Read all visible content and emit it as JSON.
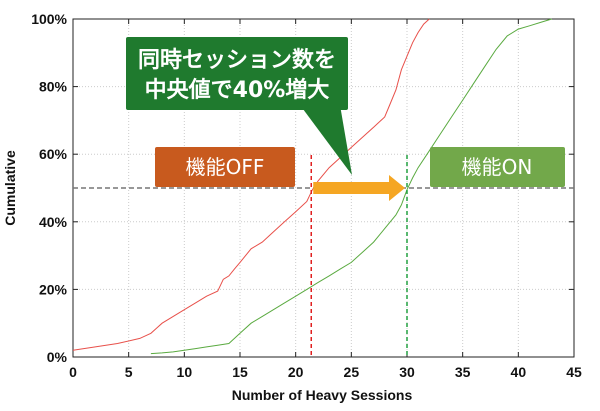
{
  "chart_data": {
    "type": "line",
    "xlabel": "Number of Heavy Sessions",
    "ylabel": "Cumulative",
    "xlim": [
      0,
      45
    ],
    "ylim": [
      0,
      100
    ],
    "xticks": [
      0,
      5,
      10,
      15,
      20,
      25,
      30,
      35,
      40,
      45
    ],
    "yticks": [
      0,
      20,
      40,
      60,
      80,
      100
    ],
    "ytick_labels": [
      "0%",
      "20%",
      "40%",
      "60%",
      "80%",
      "100%"
    ],
    "grid": true,
    "series": [
      {
        "name": "機能OFF",
        "color": "#e8504a",
        "points": [
          [
            0,
            2
          ],
          [
            2,
            3
          ],
          [
            4,
            4
          ],
          [
            6,
            5.5
          ],
          [
            7,
            7
          ],
          [
            7.5,
            8.5
          ],
          [
            8,
            10
          ],
          [
            9,
            12
          ],
          [
            10,
            14
          ],
          [
            11,
            16
          ],
          [
            12,
            18
          ],
          [
            13,
            19.5
          ],
          [
            13.5,
            23
          ],
          [
            14,
            24
          ],
          [
            14.5,
            26
          ],
          [
            15,
            28
          ],
          [
            16,
            32
          ],
          [
            17,
            34
          ],
          [
            18,
            37
          ],
          [
            19,
            40
          ],
          [
            20,
            43
          ],
          [
            21,
            46
          ],
          [
            21.5,
            49.5
          ],
          [
            22,
            52
          ],
          [
            23,
            56
          ],
          [
            24,
            59
          ],
          [
            25,
            62
          ],
          [
            26,
            65
          ],
          [
            27,
            68
          ],
          [
            28,
            71
          ],
          [
            28.5,
            75
          ],
          [
            29,
            79
          ],
          [
            29.5,
            85
          ],
          [
            30,
            89
          ],
          [
            30.5,
            93
          ],
          [
            31,
            96
          ],
          [
            31.5,
            98.5
          ],
          [
            32,
            100
          ]
        ]
      },
      {
        "name": "機能ON",
        "color": "#5aaa40",
        "points": [
          [
            7,
            1
          ],
          [
            8,
            1.2
          ],
          [
            9,
            1.5
          ],
          [
            10,
            2
          ],
          [
            11,
            2.5
          ],
          [
            12,
            3
          ],
          [
            13,
            3.5
          ],
          [
            14,
            4
          ],
          [
            15,
            7
          ],
          [
            16,
            10
          ],
          [
            17,
            12
          ],
          [
            18,
            14
          ],
          [
            19,
            16
          ],
          [
            20,
            18
          ],
          [
            21,
            20
          ],
          [
            22,
            22
          ],
          [
            23,
            24
          ],
          [
            24,
            26
          ],
          [
            25,
            28
          ],
          [
            26,
            31
          ],
          [
            27,
            34
          ],
          [
            28,
            38
          ],
          [
            29,
            42
          ],
          [
            29.5,
            45
          ],
          [
            30,
            49.5
          ],
          [
            30.5,
            53
          ],
          [
            31,
            56
          ],
          [
            32,
            61
          ],
          [
            33,
            66
          ],
          [
            34,
            71
          ],
          [
            35,
            76
          ],
          [
            36,
            81
          ],
          [
            37,
            86
          ],
          [
            38,
            91
          ],
          [
            39,
            95
          ],
          [
            40,
            97
          ],
          [
            41,
            98
          ],
          [
            42,
            99
          ],
          [
            43,
            100
          ]
        ]
      }
    ],
    "median_line_y": 50,
    "median_off_x": 21.4,
    "median_on_x": 30,
    "annotation": "同時セッション数を\n中央値で40%増大",
    "label_off": "機能OFF",
    "label_on": "機能ON",
    "colors": {
      "off_box": "#c85a1e",
      "on_box": "#72a84a",
      "callout": "#1f7a2e",
      "arrow": "#f5a623",
      "median_line": "#777777",
      "grid": "#cccccc"
    }
  }
}
